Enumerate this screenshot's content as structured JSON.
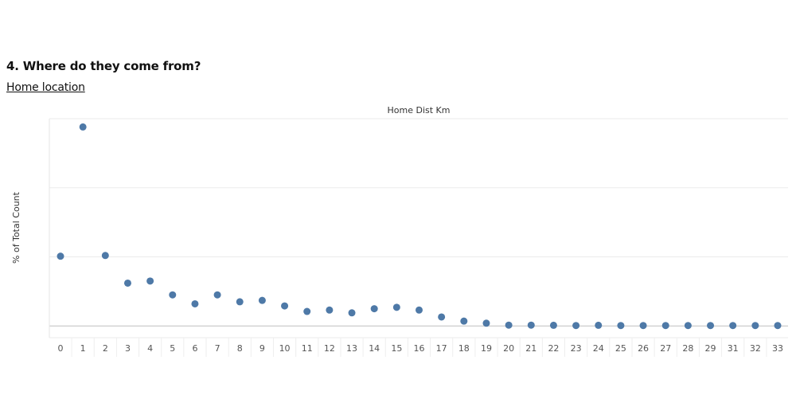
{
  "heading": "4. Where do they come from?",
  "subheading": "Home location",
  "chart_data": {
    "type": "scatter",
    "title": "Home Dist Km",
    "xlabel": "",
    "ylabel": "% of Total Count",
    "x": [
      "0",
      "1",
      "2",
      "3",
      "4",
      "5",
      "6",
      "7",
      "8",
      "9",
      "10",
      "11",
      "12",
      "13",
      "14",
      "15",
      "16",
      "17",
      "18",
      "19",
      "20",
      "21",
      "22",
      "23",
      "24",
      "25",
      "26",
      "27",
      "28",
      "29",
      "31",
      "32",
      "33"
    ],
    "values": [
      10.1,
      28.8,
      10.2,
      6.2,
      6.5,
      4.5,
      3.2,
      4.5,
      3.5,
      3.7,
      2.9,
      2.1,
      2.3,
      1.9,
      2.5,
      2.7,
      2.3,
      1.3,
      0.7,
      0.4,
      0.12,
      0.12,
      0.1,
      0.06,
      0.1,
      0.06,
      0.06,
      0.06,
      0.06,
      0.06,
      0.06,
      0.06,
      0.06
    ],
    "ylim": [
      -1.7,
      30
    ],
    "y_gridlines": [
      0,
      10,
      20,
      30
    ],
    "point_color": "#4e79a7",
    "grid": true,
    "y_tick_labels_shown": false
  }
}
